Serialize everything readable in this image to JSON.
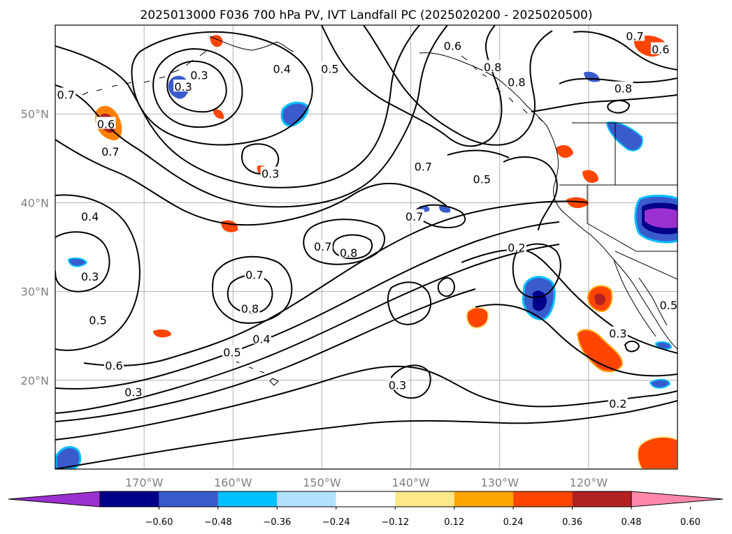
{
  "title": "2025013000 F036 700 hPa PV, IVT Landfall PC (2025020200 - 2025020500)",
  "map": {
    "lon_range": [
      -180,
      -110
    ],
    "lat_range": [
      10,
      60
    ],
    "grid": true,
    "lon_ticks": [
      -170,
      -160,
      -150,
      -140,
      -130,
      -120
    ],
    "lon_tick_labels": [
      "170°W",
      "160°W",
      "150°W",
      "140°W",
      "130°W",
      "120°W"
    ],
    "lat_ticks": [
      20,
      30,
      40,
      50
    ],
    "lat_tick_labels": [
      "20°N",
      "30°N",
      "40°N",
      "50°N"
    ]
  },
  "contour_labels": [
    {
      "text": "0.3",
      "lon": -163.8,
      "lat": 54.3
    },
    {
      "text": "0.3",
      "lon": -165.6,
      "lat": 53.0
    },
    {
      "text": "0.4",
      "lon": -154.5,
      "lat": 55.0
    },
    {
      "text": "0.5",
      "lon": -149.1,
      "lat": 55.0
    },
    {
      "text": "0.7",
      "lon": -178.8,
      "lat": 52.1
    },
    {
      "text": "0.6",
      "lon": -174.3,
      "lat": 48.8
    },
    {
      "text": "0.7",
      "lon": -173.8,
      "lat": 45.7
    },
    {
      "text": "0.3",
      "lon": -155.8,
      "lat": 43.2
    },
    {
      "text": "0.7",
      "lon": -138.6,
      "lat": 44.0
    },
    {
      "text": "0.5",
      "lon": -132.0,
      "lat": 42.6
    },
    {
      "text": "0.8",
      "lon": -130.8,
      "lat": 55.2
    },
    {
      "text": "0.8",
      "lon": -128.1,
      "lat": 53.5
    },
    {
      "text": "0.8",
      "lon": -116.1,
      "lat": 52.8
    },
    {
      "text": "0.4",
      "lon": -176.1,
      "lat": 38.4
    },
    {
      "text": "0.7",
      "lon": -139.6,
      "lat": 38.4
    },
    {
      "text": "0.7",
      "lon": -149.9,
      "lat": 35.0
    },
    {
      "text": "0.8",
      "lon": -147.0,
      "lat": 34.3
    },
    {
      "text": "0.7",
      "lon": -157.6,
      "lat": 31.8
    },
    {
      "text": "0.8",
      "lon": -158.1,
      "lat": 28.0
    },
    {
      "text": "0.2",
      "lon": -128.1,
      "lat": 34.9
    },
    {
      "text": "0.3",
      "lon": -176.1,
      "lat": 31.6
    },
    {
      "text": "0.5",
      "lon": -175.2,
      "lat": 26.7
    },
    {
      "text": "0.4",
      "lon": -156.8,
      "lat": 24.6
    },
    {
      "text": "0.5",
      "lon": -160.1,
      "lat": 23.1
    },
    {
      "text": "0.6",
      "lon": -173.4,
      "lat": 21.6
    },
    {
      "text": "0.3",
      "lon": -116.7,
      "lat": 25.2
    },
    {
      "text": "0.5",
      "lon": -111.0,
      "lat": 28.4
    },
    {
      "text": "0.3",
      "lon": -141.5,
      "lat": 19.4
    },
    {
      "text": "0.3",
      "lon": -171.2,
      "lat": 18.6
    },
    {
      "text": "0.2",
      "lon": -116.7,
      "lat": 17.3
    },
    {
      "text": "0.6",
      "lon": -135.3,
      "lat": 57.6
    },
    {
      "text": "0.7",
      "lon": -114.8,
      "lat": 58.7
    },
    {
      "text": "0.6",
      "lon": -111.9,
      "lat": 57.2
    }
  ],
  "colorbar": {
    "colors": [
      "#9b30d0",
      "#00008b",
      "#3a5bcc",
      "#00bfff",
      "#b0e2ff",
      "#ffffff",
      "#ffe88a",
      "#ffa500",
      "#ff4500",
      "#b22222",
      "#ff88aa"
    ],
    "ticks": [
      "−0.60",
      "−0.48",
      "−0.36",
      "−0.24",
      "−0.12",
      "0.12",
      "0.24",
      "0.36",
      "0.48",
      "0.60"
    ]
  }
}
